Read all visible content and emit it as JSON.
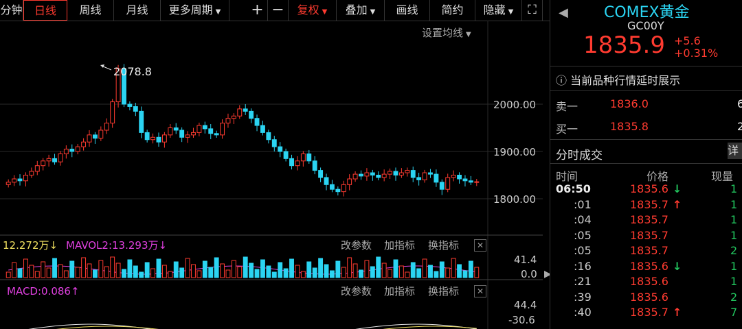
{
  "toolbar": {
    "tabs": [
      {
        "label": "分钟",
        "active": false
      },
      {
        "label": "日线",
        "active": true
      },
      {
        "label": "周线",
        "active": false
      },
      {
        "label": "月线",
        "active": false
      },
      {
        "label": "更多周期",
        "active": false
      }
    ],
    "zoom_in": "+",
    "zoom_out": "−",
    "fuquan": "复权",
    "diejia": "叠加",
    "huaxian": "画线",
    "jianyue": "简约",
    "yincang": "隐藏"
  },
  "chart": {
    "set_ma": "设置均线",
    "high_label": "2078.8",
    "price_ticks": [
      "2000.00",
      "1900.00",
      "1800.00"
    ]
  },
  "volume_panel": {
    "mavol1": "12.272万",
    "mavol2": "MAVOL2:13.293万",
    "btn_params": "改参数",
    "btn_add": "加指标",
    "btn_switch": "换指标",
    "close": "✕",
    "ticks": [
      "41.4",
      "0.0"
    ]
  },
  "macd_panel": {
    "macd": "MACD:0.086",
    "btn_params": "改参数",
    "btn_add": "加指标",
    "btn_switch": "换指标",
    "close": "✕",
    "ticks": [
      "44.4",
      "-30.6"
    ]
  },
  "quote": {
    "name": "COMEX黄金",
    "code": "GC00Y",
    "price": "1835.9",
    "change": "+5.6",
    "change_pct": "+0.31%",
    "notice": "当前品种行情延时展示",
    "sell_label": "卖一",
    "sell_price": "1836.0",
    "sell_vol": "6",
    "buy_label": "买一",
    "buy_price": "1835.8",
    "buy_vol": "2",
    "ticks_title": "分时成交",
    "detail": "详",
    "col_time": "时间",
    "col_price": "价格",
    "col_vol": "现量",
    "trades": [
      {
        "time": "06:50",
        "price": "1835.6",
        "dir": "down",
        "vol": "1"
      },
      {
        "time": ":01",
        "price": "1835.7",
        "dir": "up",
        "vol": "1"
      },
      {
        "time": ":04",
        "price": "1835.7",
        "dir": "",
        "vol": "1"
      },
      {
        "time": ":05",
        "price": "1835.7",
        "dir": "",
        "vol": "1"
      },
      {
        "time": ":05",
        "price": "1835.7",
        "dir": "",
        "vol": "2"
      },
      {
        "time": ":16",
        "price": "1835.6",
        "dir": "down",
        "vol": "1"
      },
      {
        "time": ":21",
        "price": "1835.6",
        "dir": "",
        "vol": "1"
      },
      {
        "time": ":39",
        "price": "1835.6",
        "dir": "",
        "vol": "2"
      },
      {
        "time": ":40",
        "price": "1835.7",
        "dir": "up",
        "vol": "7"
      }
    ]
  },
  "colors": {
    "up": "#ff3b30",
    "down": "#2bd4f2",
    "accent": "#2bd4f2",
    "grid": "#333333"
  }
}
